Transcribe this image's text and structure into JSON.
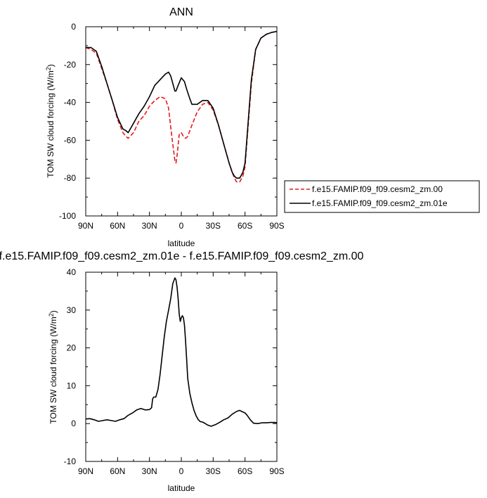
{
  "chart_data": [
    {
      "type": "line",
      "title": "ANN",
      "xlabel": "latitude",
      "ylabel": "TOM SW cloud forcing (W/m",
      "ylabel_sup": "2",
      "ylabel_tail": ")",
      "x_ticks": [
        {
          "value": -90,
          "label": "90N"
        },
        {
          "value": -60,
          "label": "60N"
        },
        {
          "value": -30,
          "label": "30N"
        },
        {
          "value": 0,
          "label": "0"
        },
        {
          "value": 30,
          "label": "30S"
        },
        {
          "value": 60,
          "label": "60S"
        },
        {
          "value": 90,
          "label": "90S"
        }
      ],
      "y_ticks": [
        0,
        -20,
        -40,
        -60,
        -80,
        -100
      ],
      "xlim": [
        -90,
        90
      ],
      "ylim": [
        -100,
        0
      ],
      "legend": "right",
      "series": [
        {
          "name": "f.e15.FAMIP.f09_f09.cesm2_zm.00",
          "color": "#e41a1c",
          "dash": true,
          "x": [
            -90,
            -85,
            -80,
            -75,
            -70,
            -65,
            -60,
            -55,
            -52,
            -50,
            -45,
            -40,
            -35,
            -30,
            -25,
            -20,
            -15,
            -12,
            -10,
            -8,
            -6,
            -5,
            -4,
            -2,
            0,
            2,
            4,
            6,
            10,
            15,
            20,
            25,
            30,
            35,
            40,
            45,
            48,
            50,
            52,
            55,
            58,
            60,
            63,
            66,
            70,
            75,
            80,
            85,
            90
          ],
          "y": [
            -11,
            -12,
            -14,
            -22,
            -30,
            -39,
            -49,
            -56,
            -58,
            -59,
            -56,
            -50,
            -47,
            -42,
            -39,
            -37,
            -38,
            -43,
            -53,
            -62,
            -71,
            -72,
            -68,
            -57,
            -56,
            -58,
            -59,
            -58,
            -52,
            -45,
            -41,
            -40,
            -44,
            -52,
            -62,
            -72,
            -77,
            -80,
            -82,
            -82,
            -79,
            -74,
            -52,
            -30,
            -12,
            -6,
            -4,
            -3,
            -2.5
          ]
        },
        {
          "name": "f.e15.FAMIP.f09_f09.cesm2_zm.01e",
          "color": "#000000",
          "dash": false,
          "x": [
            -90,
            -85,
            -80,
            -75,
            -70,
            -65,
            -60,
            -55,
            -52,
            -50,
            -45,
            -40,
            -35,
            -30,
            -25,
            -20,
            -15,
            -12,
            -10,
            -8,
            -6,
            -5,
            -3,
            0,
            3,
            5,
            8,
            10,
            15,
            20,
            25,
            30,
            35,
            40,
            45,
            48,
            50,
            52,
            55,
            58,
            60,
            63,
            66,
            70,
            75,
            80,
            85,
            90
          ],
          "y": [
            -11,
            -11,
            -13,
            -21,
            -30,
            -39,
            -48,
            -54,
            -55,
            -56,
            -51,
            -46,
            -42,
            -37,
            -31,
            -28,
            -25,
            -24,
            -26,
            -30,
            -34,
            -34,
            -31,
            -27,
            -29,
            -33,
            -38,
            -41,
            -41,
            -39,
            -39,
            -43,
            -52,
            -62,
            -72,
            -77,
            -79,
            -80,
            -80,
            -77,
            -72,
            -50,
            -28,
            -12,
            -6,
            -4,
            -3,
            -2.5
          ]
        }
      ]
    },
    {
      "type": "line",
      "title": "f.e15.FAMIP.f09_f09.cesm2_zm.01e - f.e15.FAMIP.f09_f09.cesm2_zm.00",
      "xlabel": "latitude",
      "ylabel": "TOM SW cloud forcing (W/m",
      "ylabel_sup": "2",
      "ylabel_tail": ")",
      "x_ticks": [
        {
          "value": -90,
          "label": "90N"
        },
        {
          "value": -60,
          "label": "60N"
        },
        {
          "value": -30,
          "label": "30N"
        },
        {
          "value": 0,
          "label": "0"
        },
        {
          "value": 30,
          "label": "30S"
        },
        {
          "value": 60,
          "label": "60S"
        },
        {
          "value": 90,
          "label": "90S"
        }
      ],
      "y_ticks": [
        40,
        30,
        20,
        10,
        0,
        -10
      ],
      "xlim": [
        -90,
        90
      ],
      "ylim": [
        -10,
        40
      ],
      "series": [
        {
          "color": "#000000",
          "dash": false,
          "x": [
            -90,
            -86,
            -82,
            -78,
            -74,
            -70,
            -66,
            -62,
            -58,
            -54,
            -50,
            -46,
            -42,
            -38,
            -34,
            -30,
            -28,
            -27,
            -26,
            -24,
            -22,
            -20,
            -18,
            -16,
            -14,
            -12,
            -10,
            -8,
            -6,
            -5,
            -4,
            -3,
            -2,
            -1,
            0,
            1,
            2,
            3,
            4,
            5,
            6,
            8,
            10,
            12,
            14,
            16,
            18,
            20,
            22,
            25,
            28,
            32,
            36,
            40,
            44,
            48,
            52,
            55,
            57,
            60,
            62,
            65,
            68,
            72,
            76,
            80,
            84,
            88,
            90
          ],
          "y": [
            1.2,
            1.3,
            1.0,
            0.6,
            0.8,
            1.0,
            0.8,
            0.6,
            1.0,
            1.3,
            2.2,
            2.8,
            3.6,
            4.0,
            3.6,
            3.7,
            4.2,
            6.5,
            7.0,
            7.0,
            9.0,
            13,
            18,
            23,
            27,
            30,
            33,
            37,
            38.5,
            38,
            36,
            33,
            29,
            27,
            28,
            28.5,
            28,
            26,
            22,
            17,
            12,
            8,
            5.5,
            3.5,
            2.0,
            1.0,
            0.5,
            0.4,
            0.1,
            -0.4,
            -0.7,
            -0.3,
            0.3,
            1.0,
            1.5,
            2.5,
            3.2,
            3.5,
            3.2,
            2.8,
            2.2,
            1.0,
            0.1,
            0.0,
            0.2,
            0.2,
            0.3,
            0.3,
            0.2
          ]
        }
      ]
    }
  ]
}
